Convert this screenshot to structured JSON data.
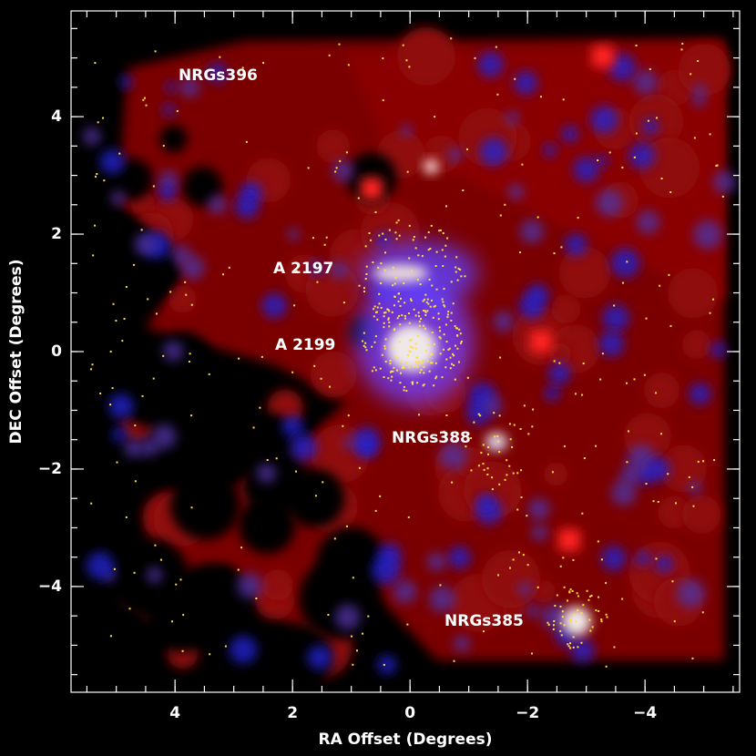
{
  "chart_data": {
    "type": "image",
    "xlabel": "RA Offset (Degrees)",
    "ylabel": "DEC Offset (Degrees)",
    "xlim": [
      5.77,
      -5.61
    ],
    "ylim": [
      -5.8,
      5.8
    ],
    "xticks": [
      4,
      2,
      0,
      {
        "value": -2,
        "label": "−2"
      },
      {
        "value": -4,
        "label": "−4"
      }
    ],
    "yticks": [
      {
        "value": -4,
        "label": "−4"
      },
      {
        "value": -2,
        "label": "−2"
      },
      0,
      2,
      4
    ],
    "annotations": [
      "NRGs396",
      "A 2197",
      "A 2199",
      "NRGs388",
      "NRGs385"
    ]
  }
}
